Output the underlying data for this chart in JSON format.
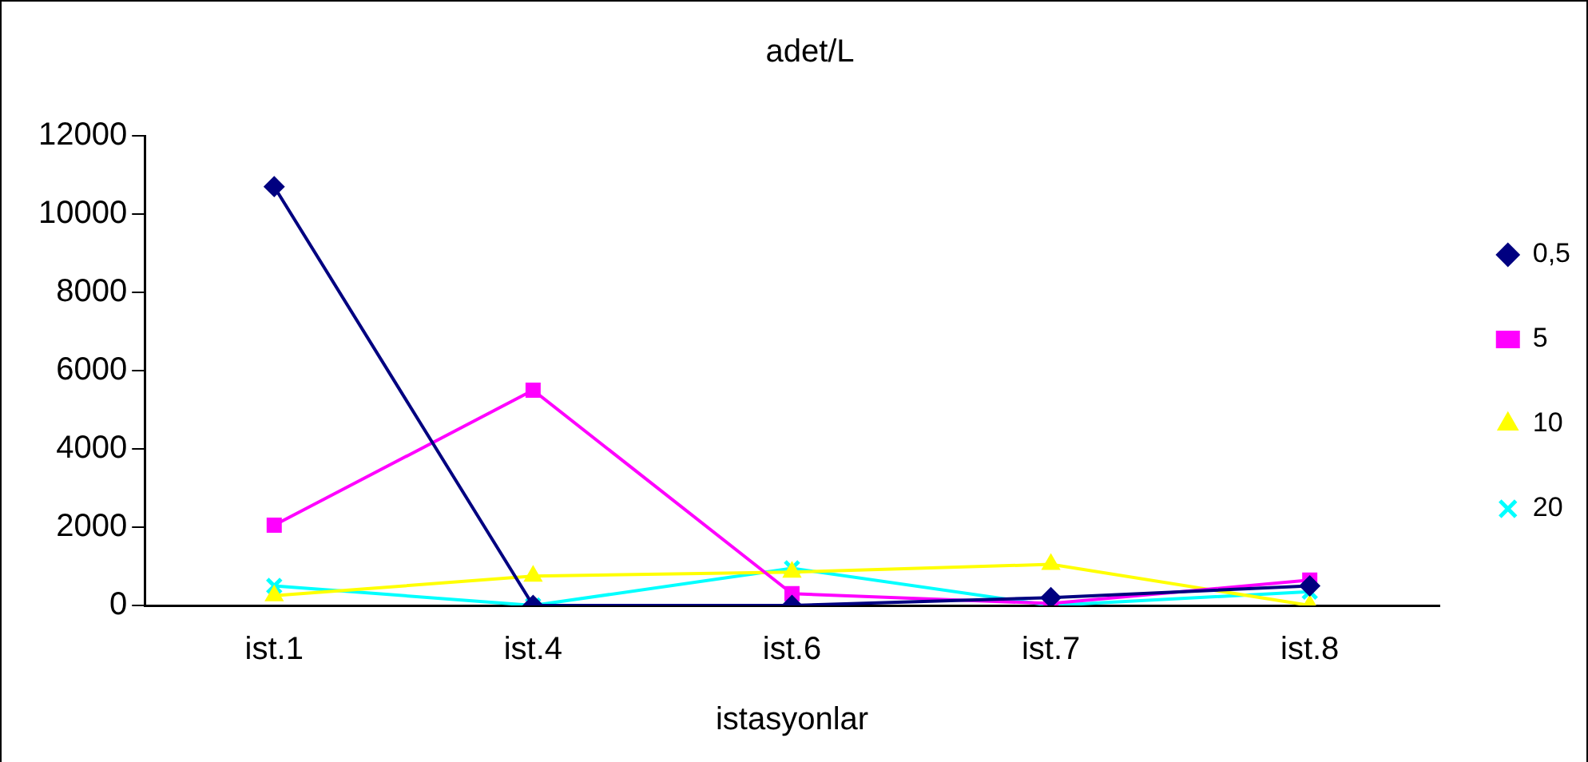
{
  "chart_data": {
    "type": "line",
    "title": "adet/L",
    "xlabel": "istasyonlar",
    "categories": [
      "ist.1",
      "ist.4",
      "ist.6",
      "ist.7",
      "ist.8"
    ],
    "series": [
      {
        "name": "0,5",
        "color": "#000080",
        "marker": "diamond",
        "values": [
          10700,
          0,
          0,
          200,
          500
        ]
      },
      {
        "name": "5",
        "color": "#ff00ff",
        "marker": "square",
        "values": [
          2050,
          5500,
          300,
          50,
          650
        ]
      },
      {
        "name": "10",
        "color": "#ffff00",
        "marker": "triangle",
        "values": [
          250,
          750,
          850,
          1050,
          0
        ]
      },
      {
        "name": "20",
        "color": "#00ffff",
        "marker": "cross",
        "values": [
          500,
          0,
          950,
          0,
          350
        ]
      }
    ],
    "ylim": [
      0,
      12000
    ],
    "yticks": [
      0,
      2000,
      4000,
      6000,
      8000,
      10000,
      12000
    ],
    "grid": false,
    "legend": "right"
  }
}
